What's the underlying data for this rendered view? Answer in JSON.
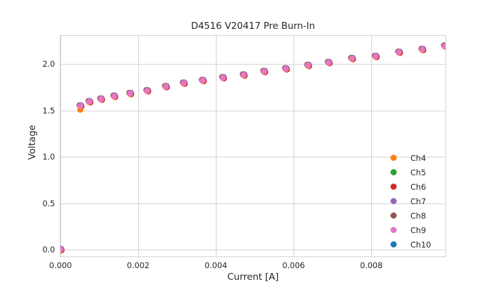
{
  "chart_data": {
    "type": "scatter",
    "title": "D4516 V20417 Pre Burn-In",
    "xlabel": "Current [A]",
    "ylabel": "Voltage",
    "xlim": [
      0,
      0.00991
    ],
    "ylim": [
      -0.074,
      2.304
    ],
    "xticks": [
      0,
      0.002,
      0.004,
      0.006,
      0.008
    ],
    "xtick_labels": [
      "0.000",
      "0.002",
      "0.004",
      "0.006",
      "0.008"
    ],
    "yticks": [
      0,
      0.5,
      1.0,
      1.5,
      2.0
    ],
    "ytick_labels": [
      "0.0",
      "0.5",
      "1.0",
      "1.5",
      "2.0"
    ],
    "grid": true,
    "legend_position": "lower right",
    "x": [
      0,
      0.00051,
      0.00074,
      0.00104,
      0.00138,
      0.00179,
      0.00223,
      0.00271,
      0.00317,
      0.00366,
      0.00418,
      0.00471,
      0.00524,
      0.0058,
      0.00637,
      0.0069,
      0.0075,
      0.00811,
      0.00871,
      0.00931,
      0.00989
    ],
    "series": [
      {
        "name": "Ch4",
        "color": "#ff7f0e",
        "values": [
          0,
          1.511,
          1.593,
          1.622,
          1.652,
          1.681,
          1.711,
          1.756,
          1.793,
          1.822,
          1.852,
          1.881,
          1.919,
          1.948,
          1.985,
          2.015,
          2.059,
          2.081,
          2.126,
          2.156,
          2.193
        ]
      },
      {
        "name": "Ch5",
        "color": "#2ca02c",
        "values": [
          0,
          1.548,
          1.593,
          1.622,
          1.652,
          1.681,
          1.711,
          1.756,
          1.793,
          1.822,
          1.852,
          1.881,
          1.919,
          1.948,
          1.985,
          2.015,
          2.059,
          2.081,
          2.126,
          2.156,
          2.193
        ]
      },
      {
        "name": "Ch6",
        "color": "#d62728",
        "values": [
          0,
          1.548,
          1.593,
          1.622,
          1.652,
          1.681,
          1.711,
          1.756,
          1.793,
          1.822,
          1.852,
          1.881,
          1.919,
          1.948,
          1.985,
          2.015,
          2.059,
          2.081,
          2.126,
          2.156,
          2.193
        ]
      },
      {
        "name": "Ch7",
        "color": "#9467bd",
        "values": [
          0,
          1.548,
          1.593,
          1.622,
          1.652,
          1.681,
          1.711,
          1.756,
          1.793,
          1.822,
          1.852,
          1.881,
          1.919,
          1.948,
          1.985,
          2.015,
          2.059,
          2.081,
          2.126,
          2.156,
          2.193
        ]
      },
      {
        "name": "Ch8",
        "color": "#8c564b",
        "values": [
          0,
          1.548,
          1.593,
          1.622,
          1.652,
          1.681,
          1.711,
          1.756,
          1.793,
          1.822,
          1.852,
          1.881,
          1.919,
          1.948,
          1.985,
          2.015,
          2.059,
          2.081,
          2.126,
          2.156,
          2.193
        ]
      },
      {
        "name": "Ch9",
        "color": "#e377c2",
        "values": [
          0,
          1.548,
          1.593,
          1.622,
          1.652,
          1.681,
          1.711,
          1.756,
          1.793,
          1.822,
          1.852,
          1.881,
          1.919,
          1.948,
          1.985,
          2.015,
          2.059,
          2.081,
          2.126,
          2.156,
          2.193
        ]
      },
      {
        "name": "Ch10",
        "color": "#1f77b4",
        "values": [
          0,
          1.548,
          1.593,
          1.622,
          1.652,
          1.681,
          1.711,
          1.756,
          1.793,
          1.822,
          1.852,
          1.881,
          1.919,
          1.948,
          1.985,
          2.015,
          2.059,
          2.081,
          2.126,
          2.156,
          2.193
        ]
      }
    ],
    "draw_order": [
      "Ch10",
      "Ch5",
      "Ch8",
      "Ch7",
      "Ch6",
      "Ch4",
      "Ch9"
    ],
    "style": {
      "grid_color": "#d4d4d4",
      "text_color": "#262626",
      "background": "#ffffff",
      "marker_radius": 4.5
    }
  }
}
